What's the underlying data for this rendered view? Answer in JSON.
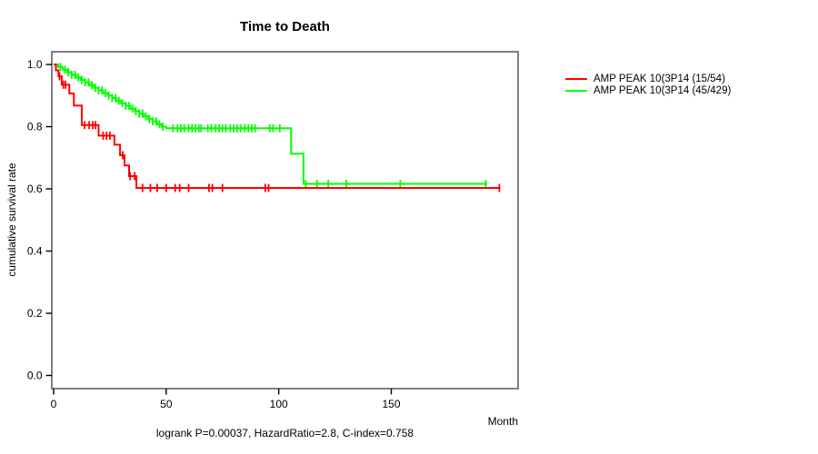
{
  "chart_data": {
    "type": "line",
    "subtype": "kaplan-meier-step",
    "title": "Time to Death",
    "ylabel": "cumulative survival rate",
    "xlabel": "Month",
    "footer": "logrank P=0.00037, HazardRatio=2.8, C-index=0.758",
    "grid": false,
    "legend_position": "right-outside",
    "x_axis": {
      "range": [
        0,
        206
      ],
      "ticks": [
        0,
        50,
        100,
        150
      ]
    },
    "y_axis": {
      "range": [
        0.0,
        1.0
      ],
      "ticks": [
        {
          "v": 1.0,
          "label": "1.0"
        },
        {
          "v": 0.8,
          "label": "0.8"
        },
        {
          "v": 0.6,
          "label": "0.6"
        },
        {
          "v": 0.4,
          "label": "0.4"
        },
        {
          "v": 0.2,
          "label": "0.2"
        },
        {
          "v": 0.0,
          "label": "0.0"
        }
      ]
    },
    "series": [
      {
        "name": "AMP PEAK 10(3P14 (15/54)",
        "color": "#ff0000",
        "end_month": 198.5,
        "steps": [
          [
            0,
            1.0
          ],
          [
            1,
            0.981
          ],
          [
            2.2,
            0.962
          ],
          [
            3.6,
            0.935
          ],
          [
            7,
            0.907
          ],
          [
            9,
            0.868
          ],
          [
            12.5,
            0.805
          ],
          [
            20,
            0.771
          ],
          [
            27,
            0.742
          ],
          [
            29.5,
            0.708
          ],
          [
            31.5,
            0.675
          ],
          [
            33.5,
            0.641
          ],
          [
            36.8,
            0.603
          ]
        ],
        "censor_months": [
          2.6,
          4.3,
          5.3,
          13.7,
          15.8,
          17.4,
          18.6,
          22,
          23.5,
          25,
          30.7,
          34,
          36,
          39.5,
          43,
          46,
          50,
          54,
          56,
          60,
          69,
          70.5,
          75,
          94,
          95.5,
          198
        ]
      },
      {
        "name": "AMP PEAK 10(3P14 (45/429)",
        "color": "#00ff00",
        "end_month": 192.5,
        "steps": [
          [
            0,
            1.0
          ],
          [
            2,
            0.992
          ],
          [
            4,
            0.983
          ],
          [
            6,
            0.975
          ],
          [
            8,
            0.967
          ],
          [
            10,
            0.958
          ],
          [
            12,
            0.95
          ],
          [
            14,
            0.942
          ],
          [
            16,
            0.933
          ],
          [
            18,
            0.925
          ],
          [
            20,
            0.917
          ],
          [
            22,
            0.908
          ],
          [
            24,
            0.9
          ],
          [
            26,
            0.892
          ],
          [
            28,
            0.883
          ],
          [
            30,
            0.875
          ],
          [
            32,
            0.867
          ],
          [
            34,
            0.858
          ],
          [
            36,
            0.85
          ],
          [
            38,
            0.842
          ],
          [
            40,
            0.833
          ],
          [
            42,
            0.825
          ],
          [
            44,
            0.817
          ],
          [
            46,
            0.808
          ],
          [
            48,
            0.8
          ],
          [
            50,
            0.795
          ],
          [
            105.5,
            0.713
          ],
          [
            111,
            0.616
          ]
        ],
        "censor_months": [
          3,
          5,
          6.5,
          8,
          9.5,
          11,
          12.5,
          14,
          15.5,
          17,
          18.5,
          20,
          21.5,
          23,
          24.5,
          26,
          27.5,
          29,
          30.5,
          32,
          33.5,
          35,
          36.5,
          38,
          39.5,
          41,
          42.5,
          44,
          45.5,
          47,
          48.5,
          53,
          55,
          56.5,
          58,
          60,
          61.5,
          63,
          64.5,
          65.5,
          68.5,
          70,
          72,
          73.5,
          75,
          76.5,
          78.5,
          80,
          81.5,
          83,
          85,
          86.5,
          88,
          89.5,
          96,
          97.5,
          100.5,
          112,
          117,
          122,
          130,
          154,
          192
        ]
      }
    ]
  }
}
